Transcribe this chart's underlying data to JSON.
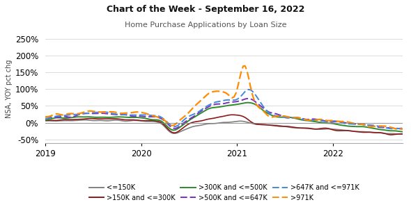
{
  "title": "Chart of the Week - September 16, 2022",
  "subtitle": "Home Purchase Applications by Loan Size",
  "ylabel": "NSA, YOY pct chg",
  "ylim": [
    -60,
    260
  ],
  "yticks": [
    -50,
    0,
    50,
    100,
    150,
    200,
    250
  ],
  "bg_color": "#ffffff",
  "series": {
    "le150": {
      "label": "<=150K",
      "color": "#808080",
      "linewidth": 1.2,
      "dashes": []
    },
    "150_300": {
      "label": ">150K and <=300K",
      "color": "#8B1A1A",
      "linewidth": 1.2,
      "dashes": []
    },
    "300_500": {
      "label": ">300K and <=500K",
      "color": "#2E8B2E",
      "linewidth": 1.4,
      "dashes": []
    },
    "500_647": {
      "label": ">500K and <=647K",
      "color": "#7B2FBE",
      "linewidth": 1.4,
      "dashes": [
        5,
        2
      ]
    },
    "647_971": {
      "label": ">647K and <=971K",
      "color": "#4488DD",
      "linewidth": 1.4,
      "dashes": [
        5,
        2
      ]
    },
    "gt971": {
      "label": ">971K",
      "color": "#FF8C00",
      "linewidth": 1.6,
      "dashes": [
        5,
        2
      ]
    }
  },
  "xticks": [
    2019,
    2020,
    2021,
    2022
  ]
}
